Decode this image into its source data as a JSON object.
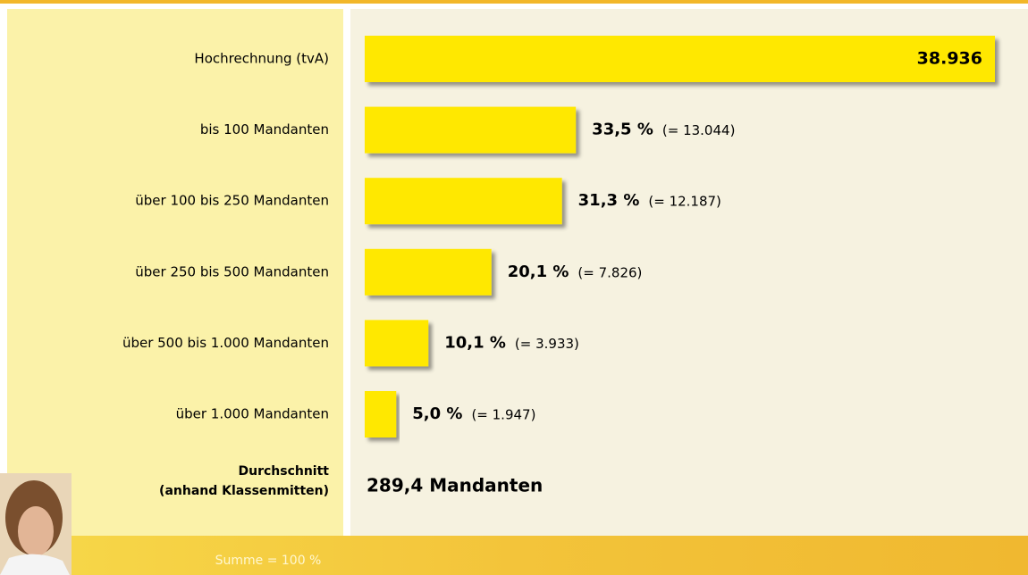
{
  "chart_data": {
    "type": "bar",
    "categories": [
      "Hochrechnung (tvA)",
      "bis 100 Mandanten",
      "über 100 bis 250 Mandanten",
      "über 250 bis 500 Mandanten",
      "über 500 bis 1.000 Mandanten",
      "über 1.000 Mandanten"
    ],
    "values": [
      38936,
      13044,
      12187,
      7826,
      3933,
      1947
    ],
    "value_labels": [
      "38.936",
      "(= 13.044)",
      "(= 12.187)",
      "(= 7.826)",
      "(= 3.933)",
      "(= 1.947)"
    ],
    "share_labels": [
      "33,5 %",
      "31,3 %",
      "20,1 %",
      "10,1 %",
      "5,0 %"
    ],
    "color": "#ffe800",
    "average": {
      "label_lines": [
        "Durchschnitt",
        "(anhand Klassenmitten)"
      ],
      "value_text": "289,4 Mandanten"
    },
    "footer": "Summe = 100 %"
  }
}
